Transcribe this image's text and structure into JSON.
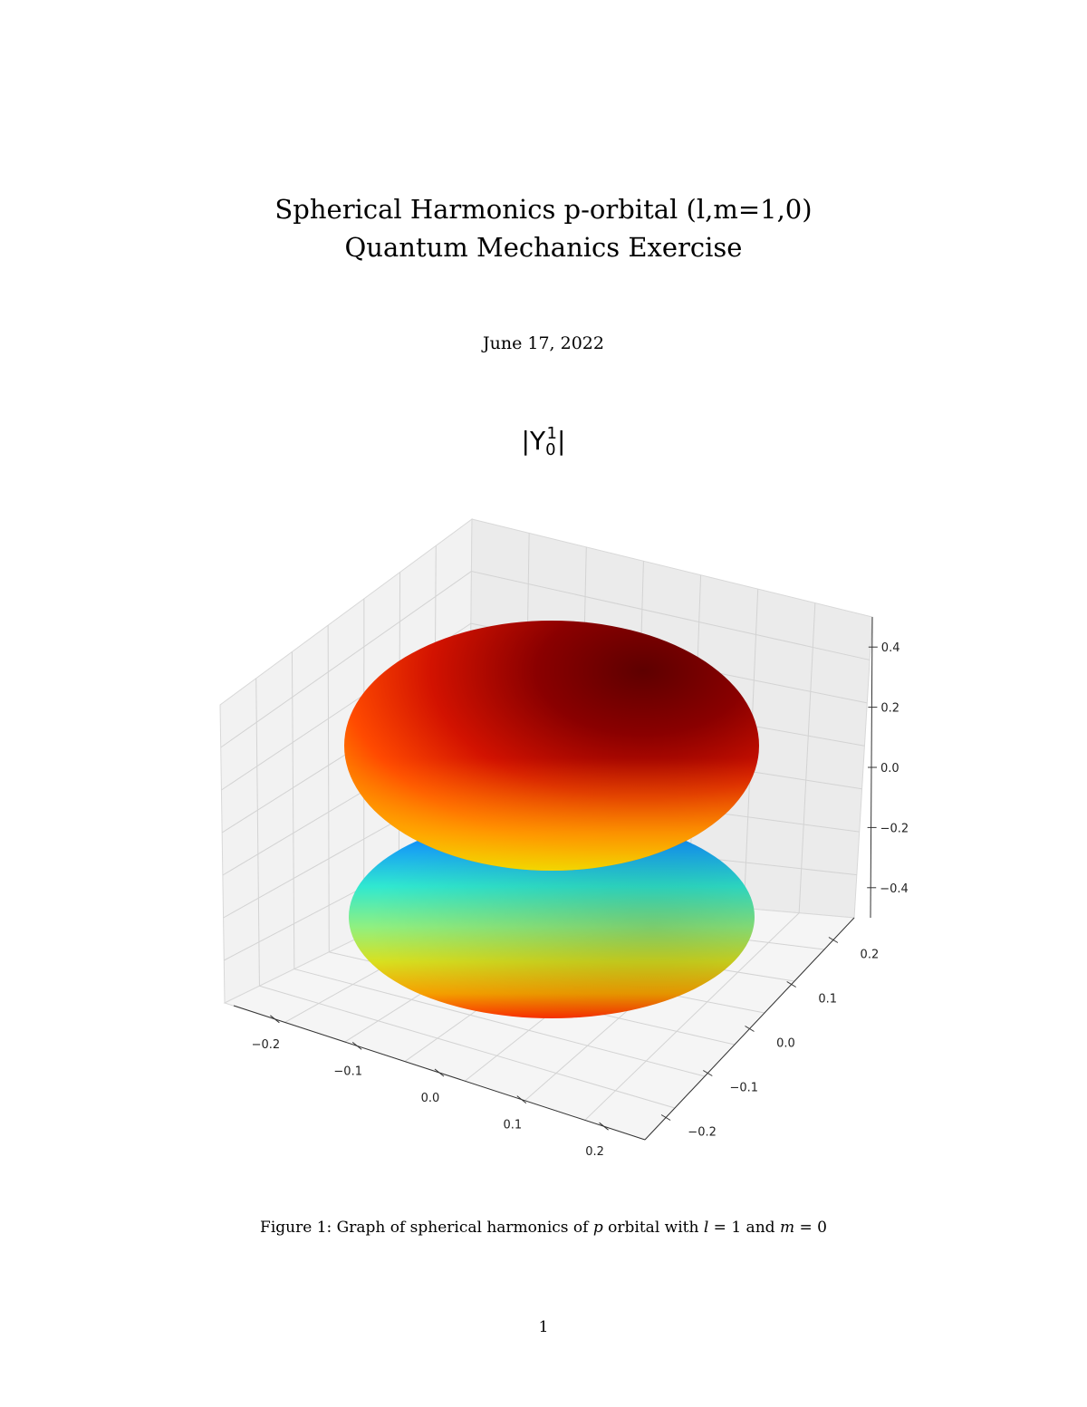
{
  "document": {
    "title_line1": "Spherical Harmonics p-orbital (l,m=1,0)",
    "title_line2": "Quantum Mechanics Exercise",
    "date": "June 17, 2022",
    "page_number": "1",
    "caption": {
      "prefix": "Figure 1: Graph of spherical harmonics of ",
      "p": "p",
      "mid1": " orbital with ",
      "l": "l",
      "mid2": " = 1 and ",
      "m": "m",
      "suffix": " = 0"
    }
  },
  "chart_data": {
    "type": "surface3d",
    "title": {
      "base": "|Y",
      "sub": "0",
      "sup": "1",
      "close": "|"
    },
    "x_ticks": [
      "−0.2",
      "−0.1",
      "0.0",
      "0.1",
      "0.2"
    ],
    "y_ticks": [
      "−0.2",
      "−0.1",
      "0.0",
      "0.1",
      "0.2"
    ],
    "z_ticks": [
      "−0.4",
      "−0.2",
      "0.0",
      "0.2",
      "0.4"
    ],
    "x_range": [
      -0.25,
      0.25
    ],
    "y_range": [
      -0.25,
      0.25
    ],
    "z_range": [
      -0.5,
      0.5
    ],
    "grid": true,
    "colormap": "jet",
    "surface": "two lobes along z axis (p-orbital |Y_0^1|)"
  }
}
